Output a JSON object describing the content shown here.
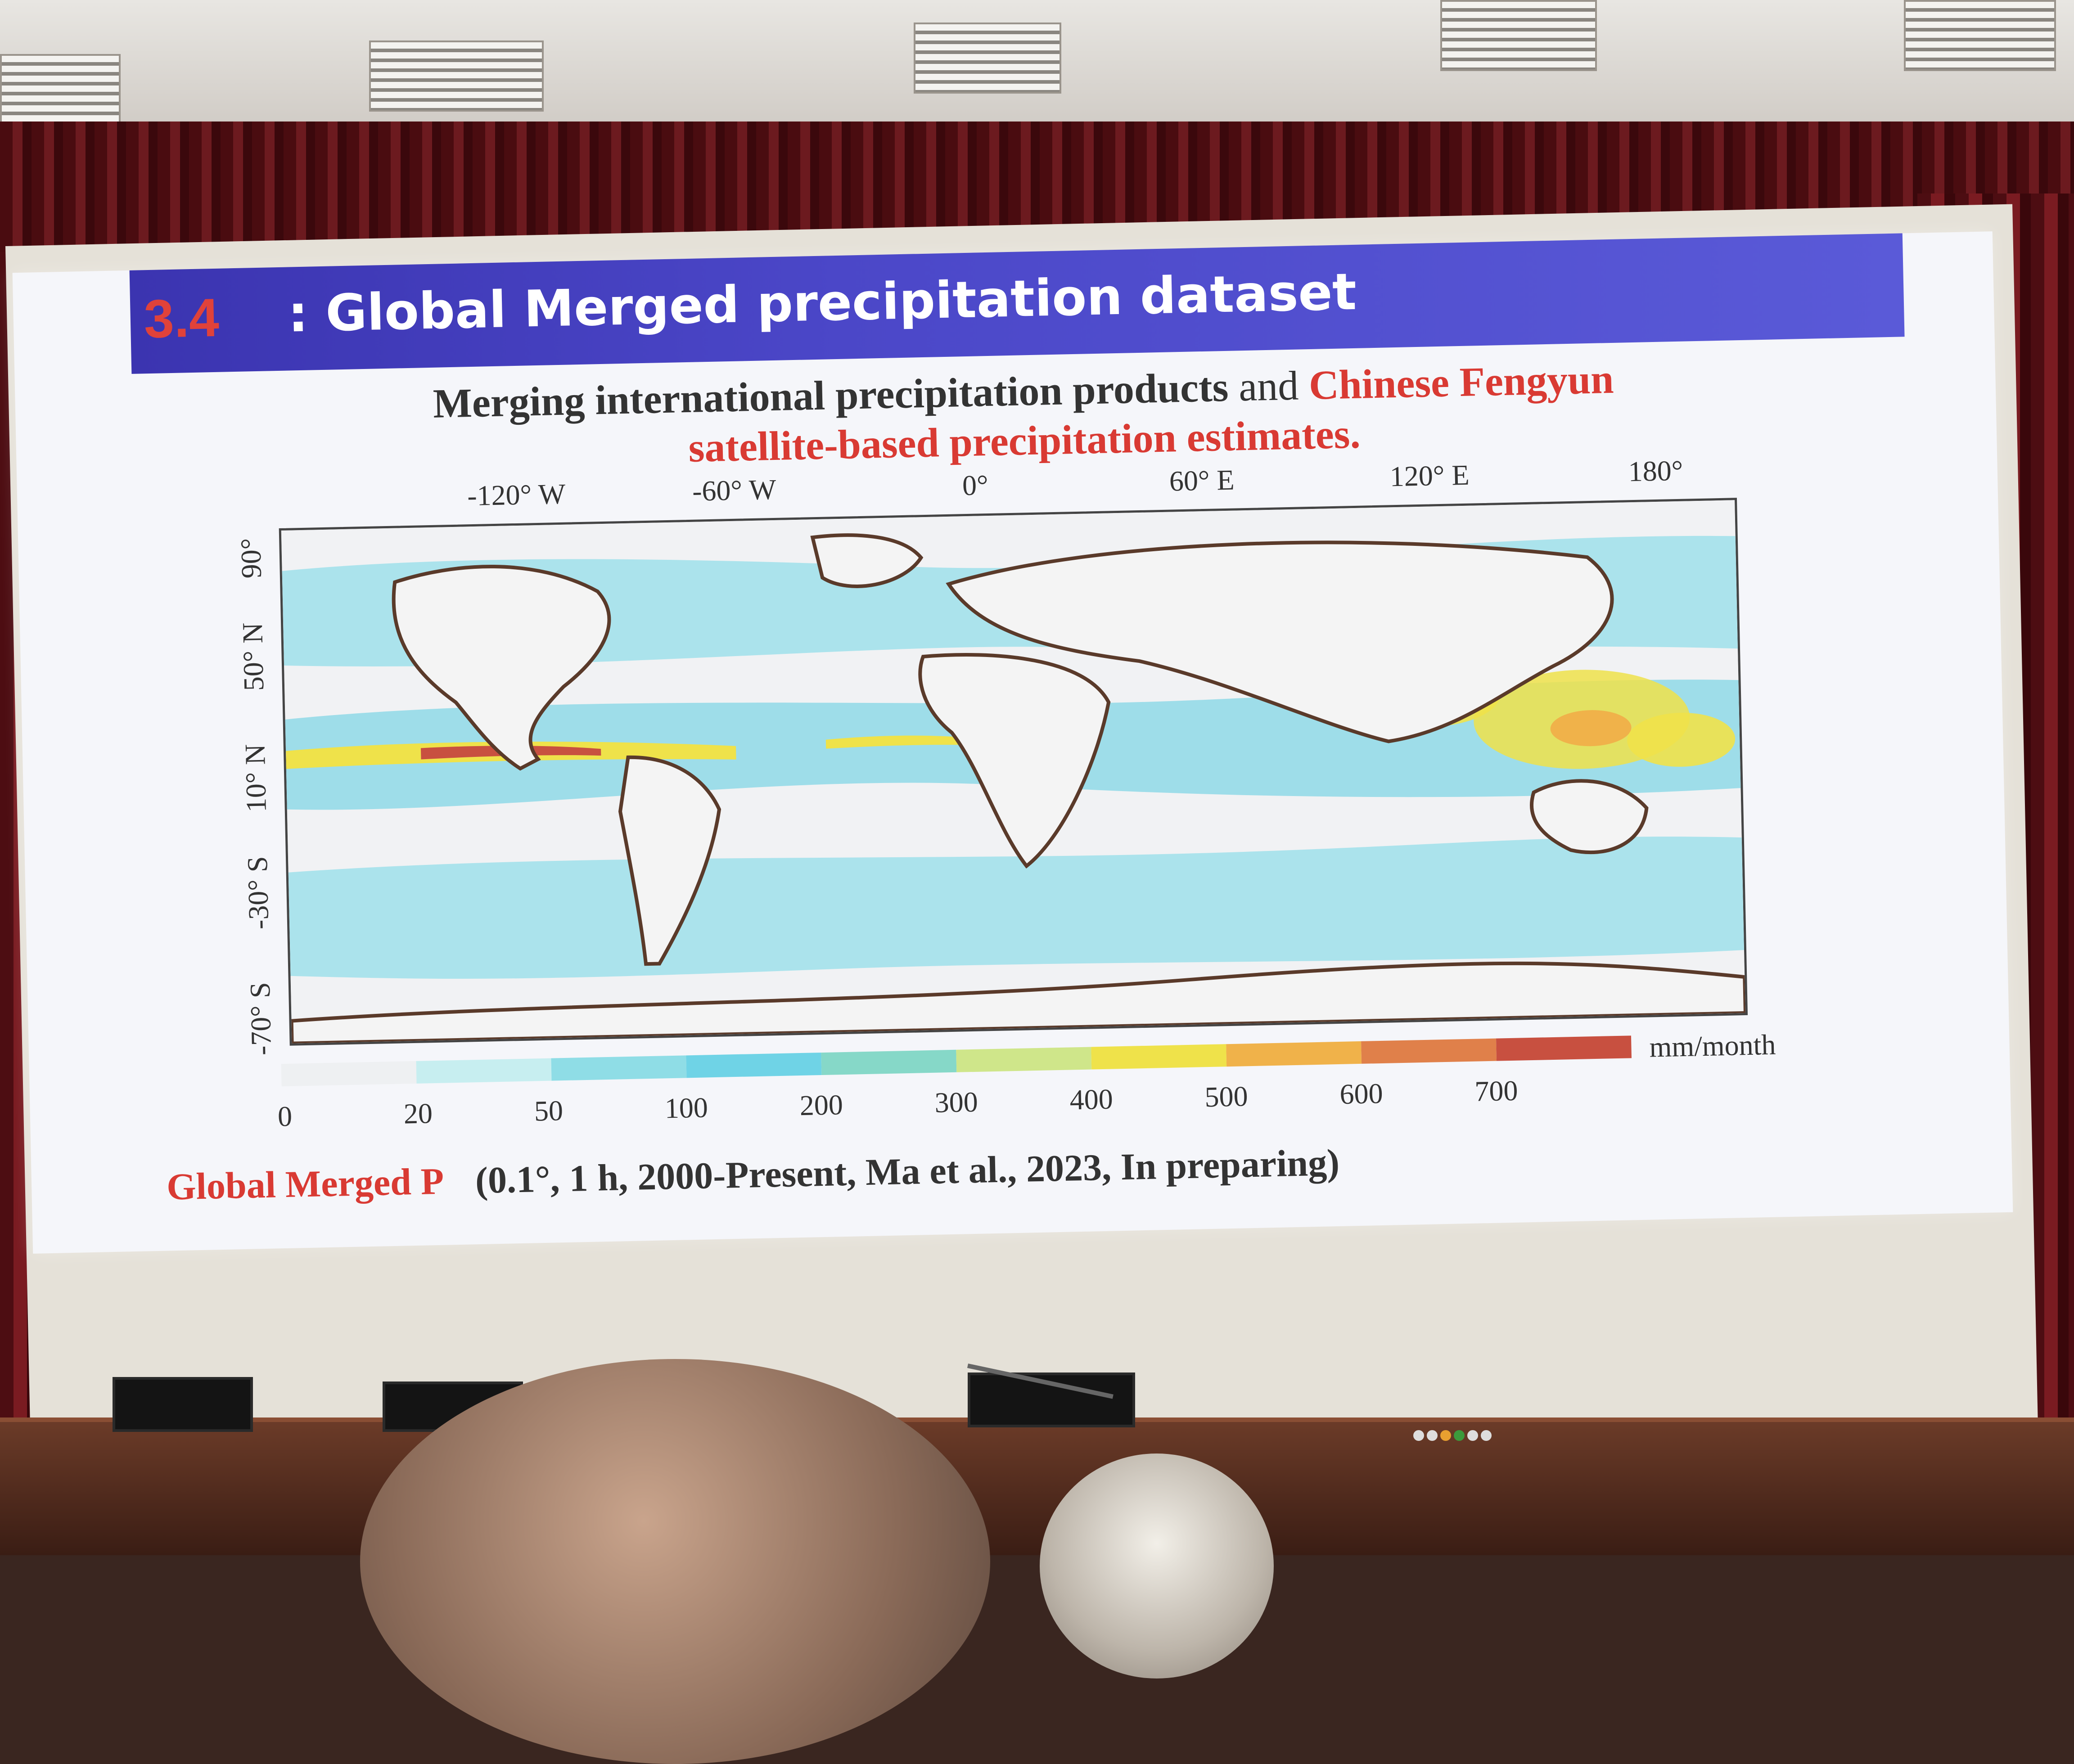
{
  "slide": {
    "title_number": "3.4",
    "title_text": ": Global Merged precipitation dataset",
    "subtitle_part1": "Merging international precipitation products",
    "subtitle_and": " and ",
    "subtitle_red1": "Chinese Fengyun",
    "subtitle_red2": "satellite-based precipitation estimates.",
    "longitudes": [
      "-120° W",
      "-60° W",
      "0°",
      "60° E",
      "120° E",
      "180°"
    ],
    "latitudes": [
      "90°",
      "50° N",
      "10° N",
      "-30° S",
      "-70° S"
    ],
    "colorbar": {
      "ticks": [
        "0",
        "20",
        "50",
        "100",
        "200",
        "300",
        "400",
        "500",
        "600",
        "700"
      ],
      "unit": "mm/month",
      "colors": [
        "#eef0f2",
        "#c7eef0",
        "#8fdde6",
        "#6fd3e6",
        "#86d8c8",
        "#cfe68a",
        "#efe24a",
        "#f0b24a",
        "#e0804a",
        "#c85040"
      ]
    },
    "caption_red": "Global Merged P",
    "caption_rest": "(0.1°, 1 h, 2000-Present, Ma et al., 2023, In preparing)"
  },
  "colors": {
    "title_bar": "#4b47c8",
    "accent_red": "#d93a33"
  }
}
